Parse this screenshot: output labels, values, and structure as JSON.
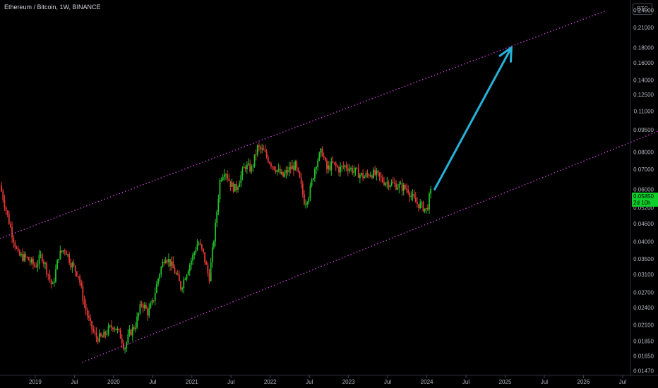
{
  "header": {
    "symbol_title": "Ethereum / Bitcoin, 1W, BINANCE",
    "currency_label": "BTC"
  },
  "price_tag": {
    "value": "0.05850",
    "countdown": "2d 10h"
  },
  "colors": {
    "background": "#000000",
    "up_candle": "#22c22a",
    "down_candle": "#e53935",
    "channel": "#d040e0",
    "arrow": "#26b2d8",
    "price_tag": "#0fcf2b",
    "axis_text": "#b2b5be"
  },
  "chart_data": {
    "type": "candlestick",
    "title": "Ethereum / Bitcoin, 1W, BINANCE",
    "scale": "log",
    "ylim": [
      0.0142,
      0.26
    ],
    "y_ticks": [
      0.24,
      0.21,
      0.18,
      0.16,
      0.14,
      0.125,
      0.11,
      0.095,
      0.08,
      0.07,
      0.06,
      0.052,
      0.046,
      0.04,
      0.035,
      0.031,
      0.027,
      0.024,
      0.021,
      0.0185,
      0.0165,
      0.0147
    ],
    "y_tick_labels": [
      "0.24000",
      "0.21000",
      "0.18000",
      "0.16000",
      "0.14000",
      "0.12500",
      "0.11000",
      "0.09500",
      "0.08000",
      "0.07000",
      "0.06000",
      "0.05200",
      "0.04600",
      "0.04000",
      "0.03500",
      "0.03100",
      "0.02700",
      "0.02400",
      "0.02100",
      "0.01850",
      "0.01650",
      "0.01470"
    ],
    "xlim": [
      2018.55,
      2026.6
    ],
    "x_ticks": [
      2019.0,
      2019.5,
      2020.0,
      2020.5,
      2021.0,
      2021.5,
      2022.0,
      2022.5,
      2023.0,
      2023.5,
      2024.0,
      2024.5,
      2025.0,
      2025.5,
      2026.0,
      2026.5
    ],
    "x_tick_labels": [
      "2019",
      "Jul",
      "2020",
      "Jul",
      "2021",
      "Jul",
      "2022",
      "Jul",
      "2023",
      "Jul",
      "2024",
      "Jul",
      "2025",
      "Jul",
      "2026",
      "Jul"
    ],
    "price_series": [
      [
        2018.55,
        0.062
      ],
      [
        2018.62,
        0.052
      ],
      [
        2018.7,
        0.043
      ],
      [
        2018.78,
        0.036
      ],
      [
        2018.9,
        0.035
      ],
      [
        2019.0,
        0.033
      ],
      [
        2019.08,
        0.036
      ],
      [
        2019.15,
        0.032
      ],
      [
        2019.22,
        0.028
      ],
      [
        2019.3,
        0.036
      ],
      [
        2019.38,
        0.038
      ],
      [
        2019.45,
        0.034
      ],
      [
        2019.55,
        0.031
      ],
      [
        2019.62,
        0.025
      ],
      [
        2019.7,
        0.021
      ],
      [
        2019.78,
        0.019
      ],
      [
        2019.86,
        0.019
      ],
      [
        2019.92,
        0.02
      ],
      [
        2020.0,
        0.021
      ],
      [
        2020.05,
        0.02
      ],
      [
        2020.1,
        0.019
      ],
      [
        2020.14,
        0.0175
      ],
      [
        2020.2,
        0.0195
      ],
      [
        2020.28,
        0.021
      ],
      [
        2020.36,
        0.025
      ],
      [
        2020.44,
        0.023
      ],
      [
        2020.5,
        0.025
      ],
      [
        2020.58,
        0.031
      ],
      [
        2020.66,
        0.036
      ],
      [
        2020.72,
        0.034
      ],
      [
        2020.8,
        0.031
      ],
      [
        2020.86,
        0.028
      ],
      [
        2020.94,
        0.032
      ],
      [
        2021.0,
        0.035
      ],
      [
        2021.08,
        0.04
      ],
      [
        2021.15,
        0.036
      ],
      [
        2021.22,
        0.03
      ],
      [
        2021.3,
        0.045
      ],
      [
        2021.36,
        0.065
      ],
      [
        2021.42,
        0.07
      ],
      [
        2021.5,
        0.062
      ],
      [
        2021.56,
        0.06
      ],
      [
        2021.62,
        0.066
      ],
      [
        2021.68,
        0.072
      ],
      [
        2021.76,
        0.07
      ],
      [
        2021.84,
        0.083
      ],
      [
        2021.92,
        0.08
      ],
      [
        2022.0,
        0.074
      ],
      [
        2022.08,
        0.07
      ],
      [
        2022.16,
        0.066
      ],
      [
        2022.24,
        0.07
      ],
      [
        2022.32,
        0.072
      ],
      [
        2022.38,
        0.064
      ],
      [
        2022.44,
        0.054
      ],
      [
        2022.5,
        0.058
      ],
      [
        2022.58,
        0.073
      ],
      [
        2022.66,
        0.081
      ],
      [
        2022.72,
        0.07
      ],
      [
        2022.8,
        0.073
      ],
      [
        2022.88,
        0.07
      ],
      [
        2022.96,
        0.072
      ],
      [
        2023.04,
        0.07
      ],
      [
        2023.12,
        0.068
      ],
      [
        2023.2,
        0.066
      ],
      [
        2023.28,
        0.068
      ],
      [
        2023.36,
        0.067
      ],
      [
        2023.44,
        0.064
      ],
      [
        2023.52,
        0.063
      ],
      [
        2023.6,
        0.062
      ],
      [
        2023.68,
        0.061
      ],
      [
        2023.76,
        0.06
      ],
      [
        2023.8,
        0.057
      ],
      [
        2023.86,
        0.054
      ],
      [
        2023.92,
        0.053
      ],
      [
        2023.96,
        0.052
      ],
      [
        2024.0,
        0.051
      ],
      [
        2024.03,
        0.056
      ],
      [
        2024.05,
        0.0585
      ]
    ],
    "annotations": [
      {
        "type": "channel_upper",
        "style": "dotted",
        "color": "#d040e0",
        "from": [
          2018.55,
          0.041
        ],
        "to": [
          2026.3,
          0.24
        ]
      },
      {
        "type": "channel_lower",
        "style": "dotted",
        "color": "#d040e0",
        "from": [
          2019.6,
          0.0157
        ],
        "to": [
          2026.95,
          0.094
        ]
      },
      {
        "type": "arrow",
        "color": "#26b2d8",
        "from": [
          2024.1,
          0.06
        ],
        "to": [
          2025.08,
          0.18
        ]
      }
    ],
    "last_price": 0.0585,
    "grid": false,
    "legend": "none"
  }
}
